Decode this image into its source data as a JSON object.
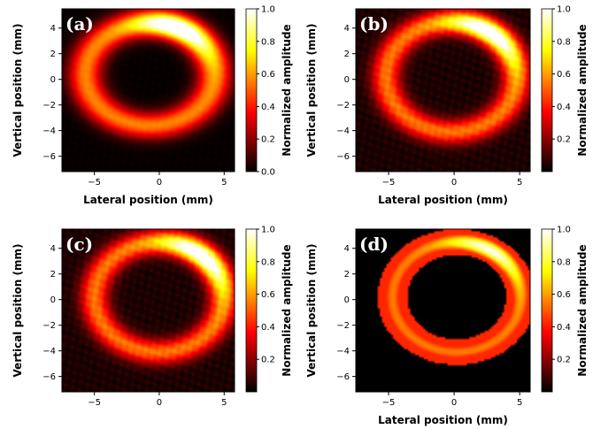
{
  "colors": {
    "map": "hot",
    "background": "#ffffff"
  },
  "chart_data": [
    {
      "type": "heatmap",
      "panel_label": "(a)",
      "xlabel": "Lateral position (mm)",
      "ylabel": "Vertical position (mm)",
      "xlim": [
        -7.5,
        5.8
      ],
      "ylim": [
        -7.2,
        5.5
      ],
      "x_ticks": [
        -5,
        0,
        5
      ],
      "y_ticks": [
        4,
        2,
        0,
        -2,
        -4,
        -6
      ],
      "colorbar": {
        "label": "Normalized amplitude",
        "range": [
          0,
          1
        ],
        "ticks": [
          "0.0",
          "0.2",
          "0.4",
          "0.6",
          "0.8",
          "1.0"
        ]
      },
      "ring": {
        "cx": -0.7,
        "cy": 0.4,
        "rx": 5.0,
        "ry": 4.0,
        "width": 1.3,
        "base": 0.55,
        "peak_x": 1.3,
        "peak_y": 3.9,
        "peak_gain": 0.65,
        "clip": false,
        "noise": 0.02
      }
    },
    {
      "type": "heatmap",
      "panel_label": "(b)",
      "xlabel": "Lateral position (mm)",
      "ylabel": "Vertical position (mm)",
      "xlim": [
        -7.5,
        5.8
      ],
      "ylim": [
        -7.2,
        5.5
      ],
      "x_ticks": [
        -5,
        0,
        5
      ],
      "y_ticks": [
        4,
        2,
        0,
        -2,
        -4,
        -6
      ],
      "colorbar": {
        "label": "Normalized amplitude",
        "range": [
          0,
          1
        ],
        "ticks": [
          "0.2",
          "0.4",
          "0.6",
          "0.8",
          "1.0"
        ]
      },
      "ring": {
        "cx": -0.2,
        "cy": 0.2,
        "rx": 5.0,
        "ry": 4.3,
        "width": 1.2,
        "base": 0.5,
        "peak_x": 2.5,
        "peak_y": 3.5,
        "peak_gain": 0.6,
        "clip": false,
        "noise": 0.08
      }
    },
    {
      "type": "heatmap",
      "panel_label": "(c)",
      "xlabel": "",
      "ylabel": "Vertical position (mm)",
      "xlim": [
        -7.5,
        5.8
      ],
      "ylim": [
        -7.2,
        5.5
      ],
      "x_ticks": [
        -5,
        0,
        5
      ],
      "y_ticks": [
        4,
        2,
        0,
        -2,
        -4,
        -6
      ],
      "colorbar": {
        "label": "Normalized amplitude",
        "range": [
          0,
          1
        ],
        "ticks": [
          "0.2",
          "0.4",
          "0.6",
          "0.8",
          "1.0"
        ]
      },
      "ring": {
        "cx": 0.0,
        "cy": 0.2,
        "rx": 5.0,
        "ry": 4.3,
        "width": 1.2,
        "base": 0.5,
        "peak_x": 3.0,
        "peak_y": 3.3,
        "peak_gain": 0.6,
        "clip": false,
        "noise": 0.08
      }
    },
    {
      "type": "heatmap",
      "panel_label": "(d)",
      "xlabel": "Lateral position (mm)",
      "ylabel": "Vertical position (mm)",
      "xlim": [
        -7.5,
        5.8
      ],
      "ylim": [
        -7.2,
        5.5
      ],
      "x_ticks": [
        -5,
        0,
        5
      ],
      "y_ticks": [
        4,
        2,
        0,
        -2,
        -4,
        -6
      ],
      "colorbar": {
        "label": "Normalized amplitude",
        "range": [
          0,
          1
        ],
        "ticks": [
          "0.2",
          "0.4",
          "0.6",
          "0.8",
          "1.0"
        ]
      },
      "ring": {
        "cx": 0.2,
        "cy": 0.2,
        "rx": 4.9,
        "ry": 4.3,
        "width": 1.0,
        "base": 0.55,
        "peak_x": 2.5,
        "peak_y": 3.5,
        "peak_gain": 0.45,
        "clip": true,
        "noise": 0.0
      }
    }
  ]
}
